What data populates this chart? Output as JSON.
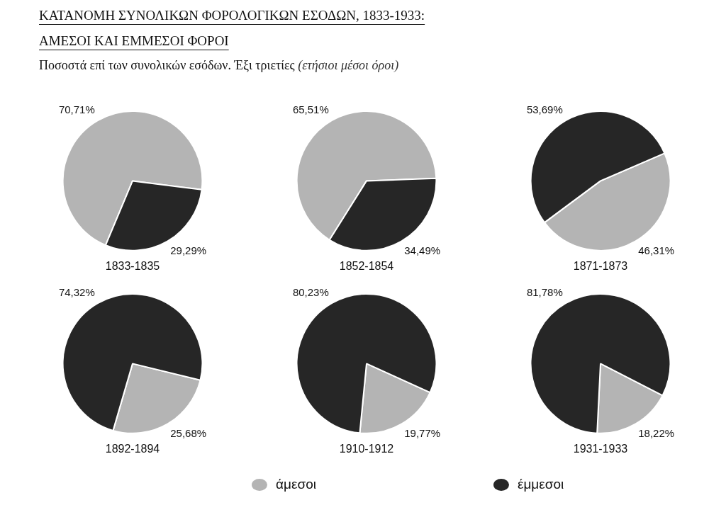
{
  "chart_data": [
    {
      "type": "pie",
      "title": "ΚΑΤΑΝΟΜΗ ΣΥΝΟΛΙΚΩΝ ΦΟΡΟΛΟΓΙΚΩΝ ΕΣΟΔΩΝ, 1833-1933: ΑΜΕΣΟΙ ΚΑΙ ΕΜΜΕΣΟΙ ΦΟΡΟΙ",
      "subtitle": "Ποσοστά επί των συνολικών εσόδων. Έξι τριετίες (ετήσιοι μέσοι όροι)",
      "xlabel": "1833-1835",
      "categories": [
        "άμεσοι",
        "έμμεσοι"
      ],
      "values": [
        70.71,
        29.29
      ],
      "value_labels": [
        "70,71%",
        "29,29%"
      ],
      "colors": [
        "#b4b4b4",
        "#262626"
      ],
      "legend": "bottom"
    },
    {
      "type": "pie",
      "xlabel": "1852-1854",
      "values": [
        65.51,
        34.49
      ],
      "value_labels": [
        "65,51%",
        "34,49%"
      ],
      "colors": [
        "#b4b4b4",
        "#262626"
      ]
    },
    {
      "type": "pie",
      "xlabel": "1871-1873",
      "values": [
        46.31,
        53.69
      ],
      "value_labels": [
        "46,31%",
        "53,69%"
      ],
      "colors": [
        "#b4b4b4",
        "#262626"
      ]
    },
    {
      "type": "pie",
      "xlabel": "1892-1894",
      "values": [
        25.68,
        74.32
      ],
      "value_labels": [
        "25,68%",
        "74,32%"
      ],
      "colors": [
        "#b4b4b4",
        "#262626"
      ]
    },
    {
      "type": "pie",
      "xlabel": "1910-1912",
      "values": [
        19.77,
        80.23
      ],
      "value_labels": [
        "19,77%",
        "80,23%"
      ],
      "colors": [
        "#b4b4b4",
        "#262626"
      ]
    },
    {
      "type": "pie",
      "xlabel": "1931-1933",
      "values": [
        18.22,
        81.78
      ],
      "value_labels": [
        "18,22%",
        "81,78%"
      ],
      "colors": [
        "#b4b4b4",
        "#262626"
      ]
    }
  ]
}
